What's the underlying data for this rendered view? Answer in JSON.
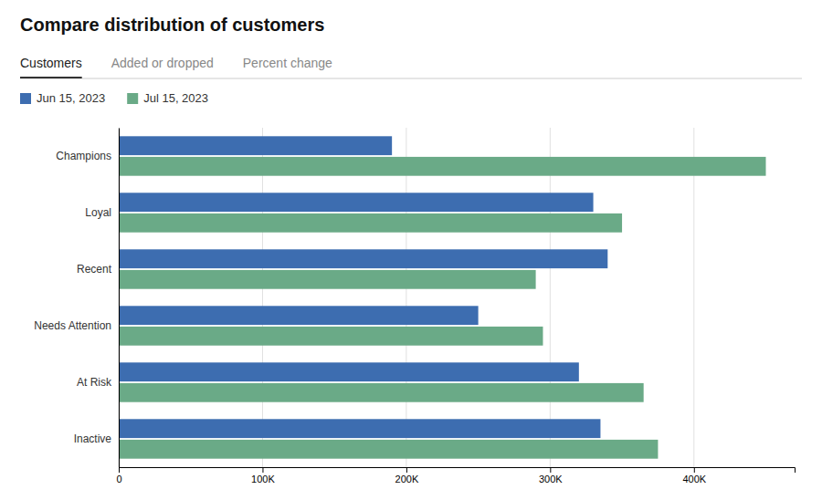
{
  "chart_data": {
    "type": "bar",
    "orientation": "horizontal",
    "title": "Compare distribution of customers",
    "annotations": [
      "Customers",
      "Added or dropped",
      "Percent change"
    ],
    "categories": [
      "Champions",
      "Loyal",
      "Recent",
      "Needs Attention",
      "At Risk",
      "Inactive"
    ],
    "series": [
      {
        "name": "Jun 15, 2023",
        "color": "#3d6db0",
        "values": [
          190000,
          330000,
          340000,
          250000,
          320000,
          335000
        ]
      },
      {
        "name": "Jul 15, 2023",
        "color": "#6aaa87",
        "values": [
          450000,
          350000,
          290000,
          295000,
          365000,
          375000
        ]
      }
    ],
    "xlim": [
      0,
      470000
    ],
    "xticks": [
      0,
      {
        "value": 100000,
        "label": "100K"
      },
      {
        "value": 200000,
        "label": "200K"
      },
      {
        "value": 300000,
        "label": "300K"
      },
      {
        "value": 400000,
        "label": "400K"
      }
    ],
    "grid": true,
    "legend": "upper left"
  }
}
